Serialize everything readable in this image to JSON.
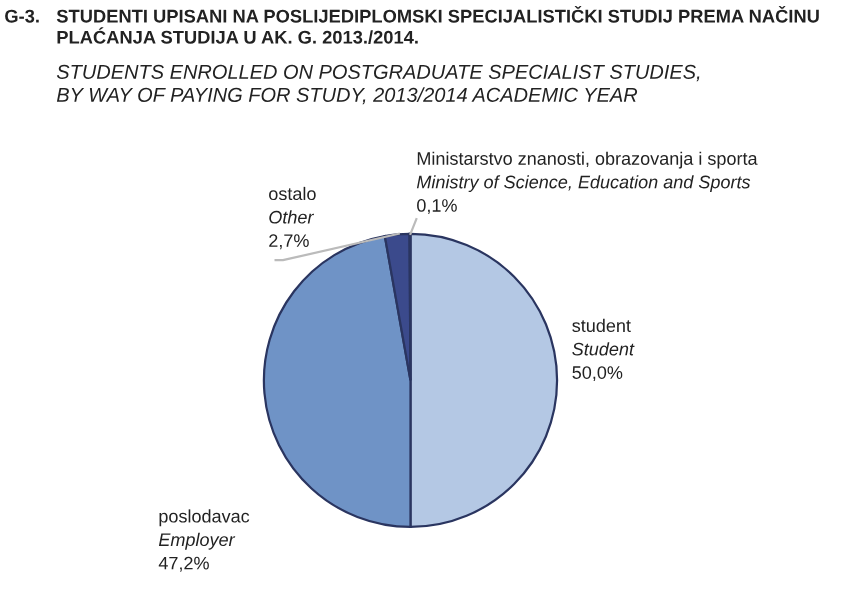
{
  "chart_data": {
    "type": "pie",
    "title": "G-3. STUDENTI UPISANI NA POSLIJEDIPLOMSKI SPECIJALISTIČKI STUDIJ PREMA NAČINU\nPLAĆANJA STUDIJA U AK. G. 2013./2014.",
    "subtitle": "STUDENTS ENROLLED ON POSTGRADUATE SPECIALIST STUDIES,\nBY WAY OF PAYING FOR STUDY, 2013/2014 ACADEMIC YEAR",
    "categories": [
      "student\nStudent",
      "poslodavac\nEmployer",
      "ostalo\nOther",
      "Ministarstvo znanosti, obrazovanja i sporta\nMinistry of Science, Education and Sports"
    ],
    "values": [
      50.0,
      47.2,
      2.7,
      0.1
    ],
    "value_labels": [
      "50,0%",
      "47,2%",
      "2,7%",
      "0,1%"
    ],
    "colors": [
      "#b4c8e4",
      "#6f93c6",
      "#3b4a8c",
      "#2e3a78"
    ],
    "legend": false
  }
}
